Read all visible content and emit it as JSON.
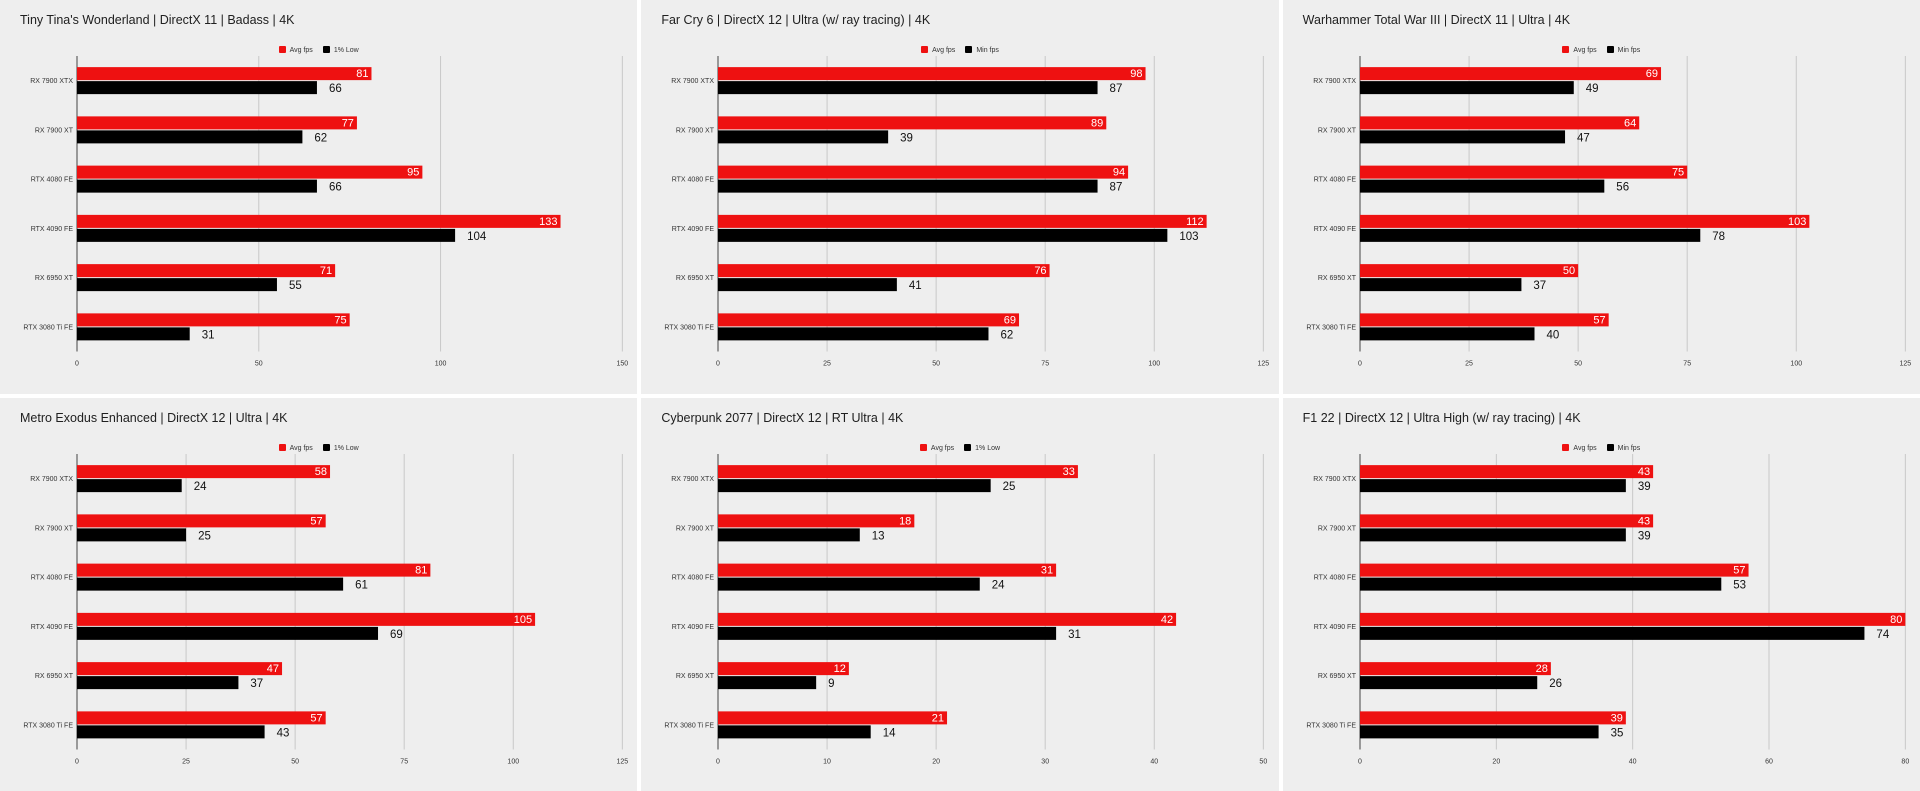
{
  "colors": {
    "avg": "#ee1111",
    "min": "#000000",
    "panel_bg": "#eeeeee",
    "grid": "#c8c8c8"
  },
  "chart_data": [
    {
      "type": "bar",
      "title": "Tiny Tina's Wonderland | DirectX 11 | Badass | 4K",
      "categories": [
        "RX 7900 XTX",
        "RX 7900 XT",
        "RTX 4080 FE",
        "RTX 4090 FE",
        "RX 6950 XT",
        "RTX 3080 Ti FE"
      ],
      "series": [
        {
          "name": "Avg fps",
          "values": [
            81,
            77,
            95,
            133,
            71,
            75
          ]
        },
        {
          "name": "1% Low",
          "values": [
            66,
            62,
            66,
            104,
            55,
            31
          ]
        }
      ],
      "xlim": [
        0,
        150
      ],
      "xticks": [
        0,
        50,
        100,
        150
      ],
      "legend": "top-center",
      "grid": true
    },
    {
      "type": "bar",
      "title": "Far Cry 6 | DirectX 12 | Ultra (w/ ray tracing) | 4K",
      "categories": [
        "RX 7900 XTX",
        "RX 7900 XT",
        "RTX 4080 FE",
        "RTX 4090 FE",
        "RX 6950 XT",
        "RTX 3080 Ti FE"
      ],
      "series": [
        {
          "name": "Avg fps",
          "values": [
            98,
            89,
            94,
            112,
            76,
            69
          ]
        },
        {
          "name": "Min fps",
          "values": [
            87,
            39,
            87,
            103,
            41,
            62
          ]
        }
      ],
      "xlim": [
        0,
        125
      ],
      "xticks": [
        0,
        25,
        50,
        75,
        100,
        125
      ],
      "legend": "top-center",
      "grid": true
    },
    {
      "type": "bar",
      "title": "Warhammer Total War III | DirectX 11 | Ultra | 4K",
      "categories": [
        "RX 7900 XTX",
        "RX 7900 XT",
        "RTX 4080 FE",
        "RTX 4090 FE",
        "RX 6950 XT",
        "RTX 3080 Ti FE"
      ],
      "series": [
        {
          "name": "Avg fps",
          "values": [
            69,
            64,
            75,
            103,
            50,
            57
          ]
        },
        {
          "name": "Min fps",
          "values": [
            49,
            47,
            56,
            78,
            37,
            40
          ]
        }
      ],
      "xlim": [
        0,
        125
      ],
      "xticks": [
        0,
        25,
        50,
        75,
        100,
        125
      ],
      "legend": "top-center",
      "grid": true
    },
    {
      "type": "bar",
      "title": "Metro Exodus Enhanced | DirectX 12 | Ultra | 4K",
      "categories": [
        "RX 7900 XTX",
        "RX 7900 XT",
        "RTX 4080 FE",
        "RTX 4090 FE",
        "RX 6950 XT",
        "RTX 3080 Ti FE"
      ],
      "series": [
        {
          "name": "Avg fps",
          "values": [
            58,
            57,
            81,
            105,
            47,
            57
          ]
        },
        {
          "name": "1% Low",
          "values": [
            24,
            25,
            61,
            69,
            37,
            43
          ]
        }
      ],
      "xlim": [
        0,
        125
      ],
      "xticks": [
        0,
        25,
        50,
        75,
        100,
        125
      ],
      "legend": "top-center",
      "grid": true
    },
    {
      "type": "bar",
      "title": "Cyberpunk 2077 | DirectX 12 | RT Ultra | 4K",
      "categories": [
        "RX 7900 XTX",
        "RX 7900 XT",
        "RTX 4080 FE",
        "RTX 4090 FE",
        "RX 6950 XT",
        "RTX 3080 Ti FE"
      ],
      "series": [
        {
          "name": "Avg fps",
          "values": [
            33,
            18,
            31,
            42,
            12,
            21
          ]
        },
        {
          "name": "1% Low",
          "values": [
            25,
            13,
            24,
            31,
            9,
            14
          ]
        }
      ],
      "xlim": [
        0,
        50
      ],
      "xticks": [
        0,
        10,
        20,
        30,
        40,
        50
      ],
      "legend": "top-center",
      "grid": true
    },
    {
      "type": "bar",
      "title": "F1 22 | DirectX 12 | Ultra High (w/ ray tracing) | 4K",
      "categories": [
        "RX 7900 XTX",
        "RX 7900 XT",
        "RTX 4080 FE",
        "RTX 4090 FE",
        "RX 6950 XT",
        "RTX 3080 Ti FE"
      ],
      "series": [
        {
          "name": "Avg fps",
          "values": [
            43,
            43,
            57,
            80,
            28,
            39
          ]
        },
        {
          "name": "Min fps",
          "values": [
            39,
            39,
            53,
            74,
            26,
            35
          ]
        }
      ],
      "xlim": [
        0,
        80
      ],
      "xticks": [
        0,
        20,
        40,
        60,
        80
      ],
      "legend": "top-center",
      "grid": true
    }
  ]
}
